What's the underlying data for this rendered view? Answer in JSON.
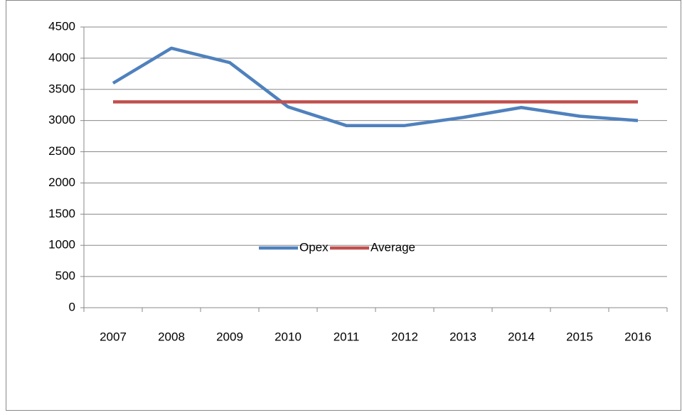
{
  "chart_data": {
    "type": "line",
    "categories": [
      "2007",
      "2008",
      "2009",
      "2010",
      "2011",
      "2012",
      "2013",
      "2014",
      "2015",
      "2016"
    ],
    "series": [
      {
        "name": "Opex",
        "color": "#4f81bd",
        "values": [
          3600,
          4160,
          3930,
          3220,
          2920,
          2920,
          3050,
          3210,
          3070,
          3000
        ]
      },
      {
        "name": "Average",
        "color": "#c0504d",
        "values": [
          3300,
          3300,
          3300,
          3300,
          3300,
          3300,
          3300,
          3300,
          3300,
          3300
        ]
      }
    ],
    "ylim": [
      0,
      4500
    ],
    "yticks": [
      0,
      500,
      1000,
      1500,
      2000,
      2500,
      3000,
      3500,
      4000,
      4500
    ],
    "grid": true,
    "legend": "bottom"
  }
}
